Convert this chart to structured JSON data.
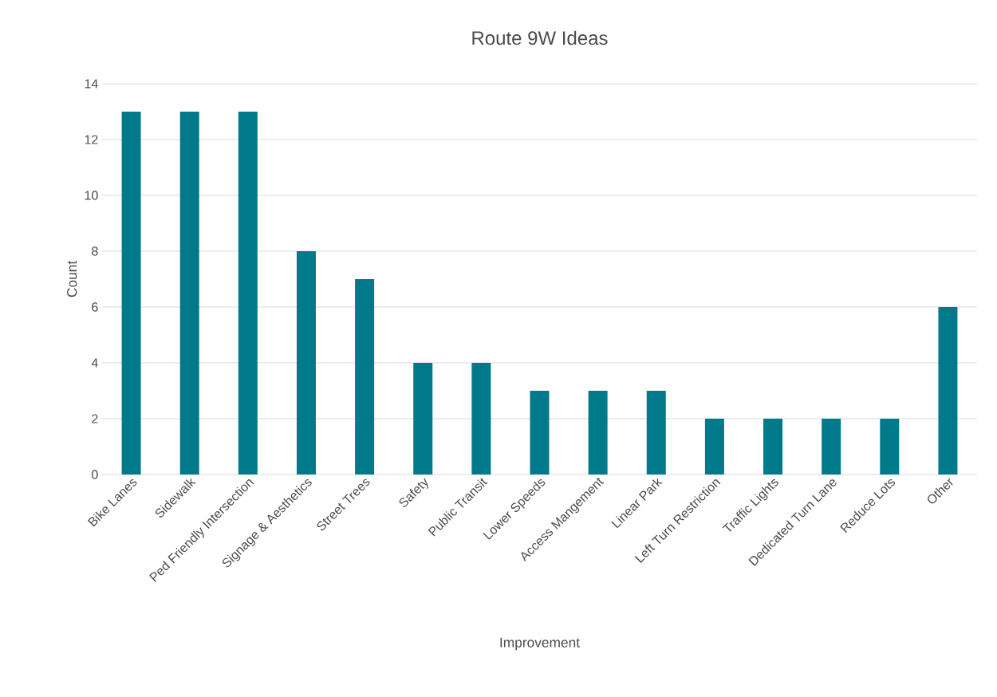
{
  "chart_data": {
    "type": "bar",
    "title": "Route 9W Ideas",
    "xlabel": "Improvement",
    "ylabel": "Count",
    "categories": [
      "Bike Lanes",
      "Sidewalk",
      "Ped Friendly Intersection",
      "Signage & Aesthetics",
      "Street Trees",
      "Safety",
      "Public Transit",
      "Lower Speeds",
      "Access Mangement",
      "Linear Park",
      "Left Turn Restriction",
      "Traffic Lights",
      "Dedicated Turn Lane",
      "Reduce Lots",
      "Other"
    ],
    "values": [
      13,
      13,
      13,
      8,
      7,
      4,
      4,
      3,
      3,
      3,
      2,
      2,
      2,
      2,
      6
    ],
    "color": "#007a8a",
    "ylim": [
      0,
      14
    ],
    "yticks": [
      0,
      2,
      4,
      6,
      8,
      10,
      12,
      14
    ],
    "grid": "y"
  }
}
